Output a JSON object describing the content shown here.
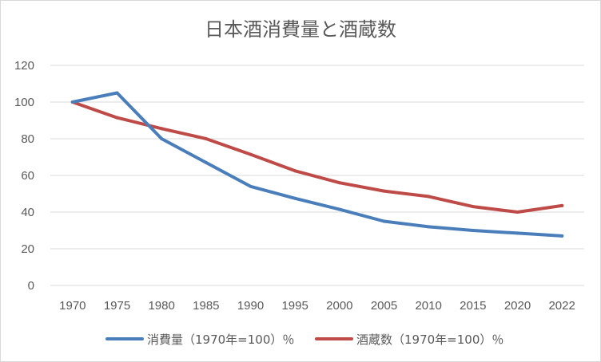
{
  "chart_data": {
    "type": "line",
    "title": "日本酒消費量と酒蔵数",
    "xlabel": "",
    "ylabel": "",
    "categories": [
      "1970",
      "1975",
      "1980",
      "1985",
      "1990",
      "1995",
      "2000",
      "2005",
      "2010",
      "2015",
      "2020",
      "2022"
    ],
    "ylim": [
      0,
      120
    ],
    "yticks": [
      "0",
      "20",
      "40",
      "60",
      "80",
      "100",
      "120"
    ],
    "grid": true,
    "legend_position": "bottom",
    "series": [
      {
        "name": "消費量（1970年=100）％",
        "color": "#4a7ebb",
        "values": [
          100,
          105,
          80,
          67,
          54,
          47.5,
          41.5,
          35,
          32,
          30,
          28.5,
          27
        ]
      },
      {
        "name": "酒蔵数（1970年=100）％",
        "color": "#be4b48",
        "values": [
          100,
          91.5,
          85.5,
          80,
          71.5,
          62.5,
          56,
          51.5,
          48.5,
          43,
          40,
          43.5
        ]
      }
    ]
  }
}
